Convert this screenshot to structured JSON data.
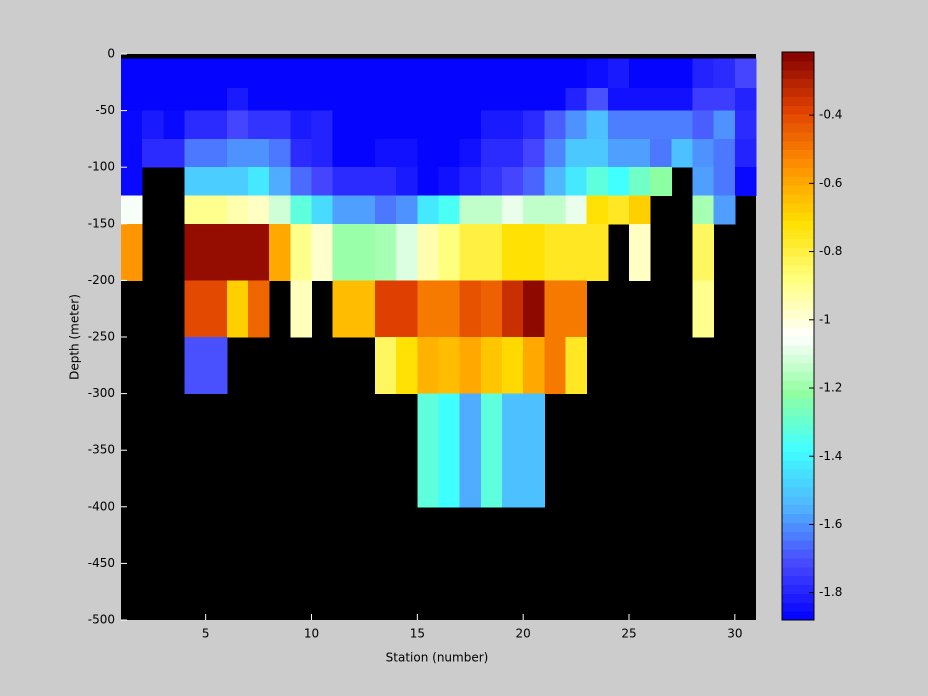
{
  "chart_data": {
    "type": "heatmap",
    "xlabel": "Station (number)",
    "ylabel": "Depth (meter)",
    "x": [
      1,
      2,
      3,
      4,
      5,
      6,
      7,
      8,
      9,
      10,
      11,
      12,
      13,
      14,
      15,
      16,
      17,
      18,
      19,
      20,
      21,
      22,
      23,
      24,
      25,
      26,
      27,
      28,
      29,
      30,
      31
    ],
    "y": [
      -4,
      -30,
      -50,
      -75,
      -100,
      -125,
      -150,
      -200,
      -250,
      -300,
      -400
    ],
    "values": [
      [
        -1.87,
        -1.87,
        -1.87,
        -1.87,
        -1.87,
        -1.87,
        -1.87,
        -1.87,
        -1.87,
        -1.87,
        -1.87,
        -1.87,
        -1.87,
        -1.87,
        -1.87,
        -1.87,
        -1.87,
        -1.87,
        -1.87,
        -1.87,
        -1.87,
        -1.87,
        -1.85,
        -1.82,
        -1.87,
        -1.87,
        -1.87,
        -1.8,
        -1.78,
        -1.72
      ],
      [
        -1.87,
        -1.87,
        -1.87,
        -1.87,
        -1.87,
        -1.82,
        -1.87,
        -1.87,
        -1.87,
        -1.87,
        -1.87,
        -1.87,
        -1.87,
        -1.87,
        -1.87,
        -1.87,
        -1.87,
        -1.87,
        -1.87,
        -1.87,
        -1.87,
        -1.8,
        -1.7,
        -1.84,
        -1.84,
        -1.84,
        -1.84,
        -1.74,
        -1.74,
        -1.8
      ],
      [
        -1.86,
        -1.82,
        -1.86,
        -1.78,
        -1.78,
        -1.72,
        -1.76,
        -1.76,
        -1.82,
        -1.8,
        -1.87,
        -1.87,
        -1.87,
        -1.87,
        -1.87,
        -1.87,
        -1.87,
        -1.82,
        -1.82,
        -1.78,
        -1.68,
        -1.6,
        -1.52,
        -1.63,
        -1.63,
        -1.63,
        -1.63,
        -1.68,
        -1.6,
        -1.78
      ],
      [
        -1.86,
        -1.78,
        -1.78,
        -1.64,
        -1.64,
        -1.6,
        -1.6,
        -1.64,
        -1.78,
        -1.8,
        -1.87,
        -1.87,
        -1.84,
        -1.84,
        -1.87,
        -1.87,
        -1.84,
        -1.78,
        -1.78,
        -1.72,
        -1.62,
        -1.5,
        -1.5,
        -1.58,
        -1.58,
        -1.64,
        -1.52,
        -1.6,
        -1.64,
        -1.8
      ],
      [
        -1.86,
        null,
        null,
        -1.49,
        -1.49,
        -1.49,
        -1.43,
        -1.56,
        -1.66,
        -1.72,
        -1.78,
        -1.78,
        -1.78,
        -1.82,
        -1.87,
        -1.84,
        -1.8,
        -1.76,
        -1.72,
        -1.67,
        -1.54,
        -1.43,
        -1.32,
        -1.38,
        -1.28,
        -1.22,
        null,
        -1.58,
        -1.64,
        -1.86
      ],
      [
        -1.06,
        null,
        null,
        -0.9,
        -0.9,
        -0.94,
        -0.97,
        -1.12,
        -1.32,
        -1.46,
        -1.58,
        -1.58,
        -1.64,
        -1.6,
        -1.43,
        -1.36,
        -1.14,
        -1.14,
        -1.08,
        -1.14,
        -1.14,
        -1.08,
        -0.72,
        -0.76,
        -0.68,
        null,
        null,
        -1.18,
        -1.58,
        null
      ],
      [
        -0.56,
        null,
        null,
        -0.25,
        -0.25,
        -0.25,
        -0.25,
        -0.6,
        -0.9,
        -0.98,
        -1.2,
        -1.2,
        -1.18,
        -1.1,
        -0.94,
        -0.88,
        -0.8,
        -0.8,
        -0.72,
        -0.72,
        -0.76,
        -0.76,
        -0.76,
        null,
        -0.97,
        null,
        null,
        -0.84,
        null,
        null
      ],
      [
        null,
        null,
        null,
        -0.4,
        -0.4,
        -0.68,
        -0.46,
        null,
        -0.96,
        null,
        -0.64,
        -0.64,
        -0.38,
        -0.38,
        -0.5,
        -0.5,
        -0.42,
        -0.45,
        -0.34,
        -0.24,
        -0.5,
        -0.5,
        null,
        null,
        null,
        null,
        null,
        -0.9,
        null,
        null
      ],
      [
        null,
        null,
        null,
        -1.7,
        -1.7,
        null,
        null,
        null,
        null,
        null,
        null,
        null,
        -0.84,
        -0.72,
        -0.62,
        -0.64,
        -0.6,
        -0.66,
        -0.7,
        -0.6,
        -0.5,
        -0.76,
        null,
        null,
        null,
        null,
        null,
        null,
        null,
        null
      ],
      [
        null,
        null,
        null,
        null,
        null,
        null,
        null,
        null,
        null,
        null,
        null,
        null,
        null,
        null,
        -1.32,
        -1.38,
        -1.56,
        -1.32,
        -1.52,
        -1.52,
        null,
        null,
        null,
        null,
        null,
        null,
        null,
        null,
        null,
        null
      ]
    ],
    "xlim": [
      1,
      31
    ],
    "xticks": [
      5,
      10,
      15,
      20,
      25,
      30
    ],
    "ylim": [
      -500,
      0
    ],
    "yticks": [
      0,
      -50,
      -100,
      -150,
      -200,
      -250,
      -300,
      -350,
      -400,
      -450,
      -500
    ],
    "clim": [
      -1.88,
      -0.215
    ],
    "cticks": [
      -1.8,
      -1.6,
      -1.4,
      -1.2,
      -1,
      -0.8,
      -0.6,
      -0.4
    ],
    "colormap": [
      "#0000ff",
      "#4848ff",
      "#50b4ff",
      "#40ffff",
      "#90ffa0",
      "#ffffff",
      "#ffff80",
      "#ffe000",
      "#ff9000",
      "#e04000",
      "#800000"
    ],
    "background": "#000000"
  }
}
